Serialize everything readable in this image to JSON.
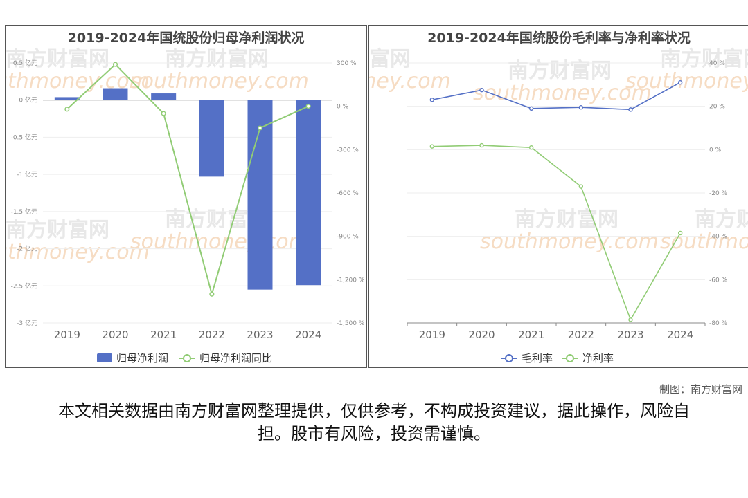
{
  "charts": [
    {
      "title": "2019-2024年国统股份归母净利润状况",
      "watermark": {
        "cn": "南方财富网",
        "en": "southmoney.com"
      },
      "chart_data": {
        "type": "bar+line",
        "categories": [
          "2019",
          "2020",
          "2021",
          "2022",
          "2023",
          "2024"
        ],
        "left_axis": {
          "ticks": [
            "0.5 亿元",
            "0 亿元",
            "-0.5 亿元",
            "-1 亿元",
            "-1.5 亿元",
            "-2 亿元",
            "-2.5 亿元",
            "-3 亿元"
          ],
          "ylim": [
            -3,
            0.5
          ]
        },
        "right_axis": {
          "ticks": [
            "300 %",
            "0 %",
            "-300 %",
            "-600 %",
            "-900 %",
            "-1,200 %",
            "-1,500 %"
          ],
          "ylim": [
            -1500,
            300
          ]
        },
        "series": [
          {
            "name": "归母净利润",
            "type": "bar",
            "axis": "left",
            "color": "#5470c6",
            "values": [
              0.04,
              0.16,
              0.09,
              -1.03,
              -2.55,
              -2.49
            ]
          },
          {
            "name": "归母净利润同比",
            "type": "line",
            "axis": "right",
            "color": "#91cc75",
            "values": [
              -20,
              290,
              -50,
              -1300,
              -150,
              0
            ]
          }
        ]
      }
    },
    {
      "title": "2019-2024年国统股份毛利率与净利率状况",
      "watermark": {
        "cn": "南方财富网",
        "en": "southmoney.com"
      },
      "chart_data": {
        "type": "line",
        "categories": [
          "2019",
          "2020",
          "2021",
          "2022",
          "2023",
          "2024"
        ],
        "axis": {
          "ticks": [
            "40 %",
            "20 %",
            "0 %",
            "-20 %",
            "-40 %",
            "-60 %",
            "-80 %"
          ],
          "ylim": [
            -80,
            40
          ]
        },
        "series": [
          {
            "name": "毛利率",
            "color": "#5470c6",
            "values": [
              23,
              27.5,
              19,
              19.5,
              18.5,
              31
            ]
          },
          {
            "name": "净利率",
            "color": "#91cc75",
            "values": [
              1.5,
              2,
              1,
              -17,
              -78.5,
              -38.5
            ]
          }
        ]
      }
    }
  ],
  "credit": "制图：南方财富网",
  "disclaimer": "本文相关数据由南方财富网整理提供，仅供参考，不构成投资建议，据此操作，风险自担。股市有风险，投资需谨慎。"
}
